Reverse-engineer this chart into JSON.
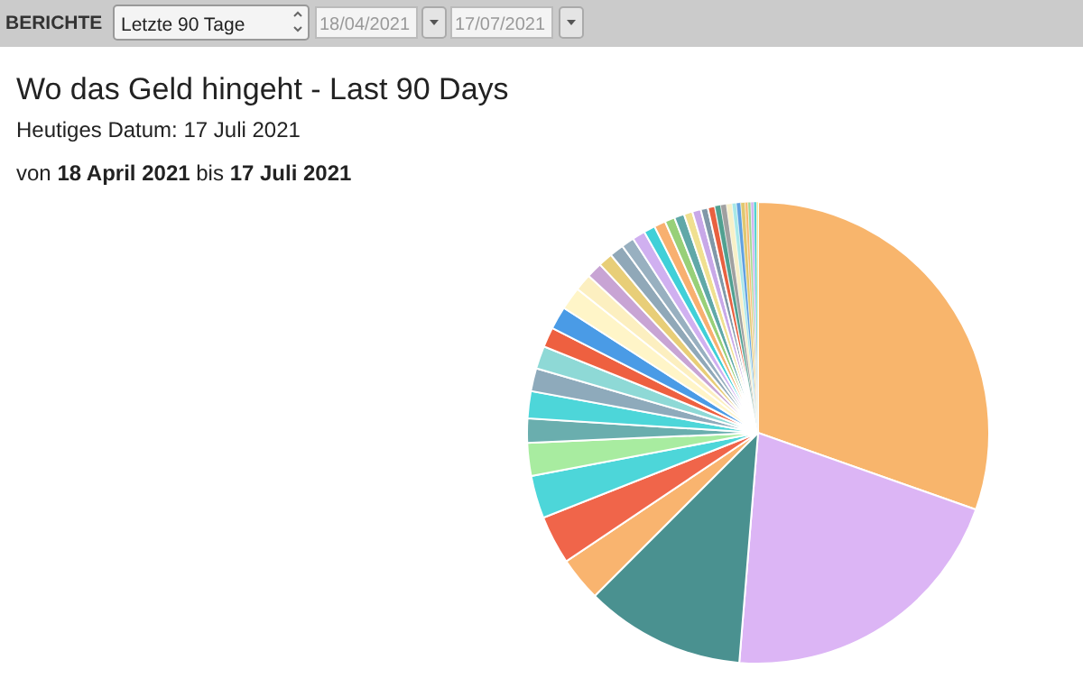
{
  "chart_data": {
    "type": "pie",
    "title": "Wo das Geld hingeht - Last 90 Days",
    "subtitle": "Heutiges Datum: 17 Juli 2021",
    "annotations": [
      "BERICHTE",
      "Letzte 90 Tage",
      "18/04/2021",
      "17/07/2021",
      "von ",
      "18 April 2021",
      " bis ",
      "17 Juli 2021"
    ],
    "categories": [
      null,
      null,
      null,
      null,
      null,
      null,
      null,
      null,
      null,
      null,
      null,
      null,
      null,
      null,
      null,
      null,
      null,
      null,
      null,
      null,
      null,
      null,
      null,
      null,
      null,
      null,
      null,
      null,
      null,
      null,
      null,
      null,
      null,
      null,
      null,
      null,
      null,
      null,
      null
    ],
    "values": [
      30.4,
      20.9,
      11.2,
      3.1,
      3.4,
      3.0,
      2.3,
      1.7,
      1.9,
      1.6,
      1.6,
      1.4,
      1.6,
      1.6,
      1.2,
      1.1,
      1.0,
      1.0,
      0.9,
      0.9,
      0.8,
      0.8,
      0.7,
      0.7,
      0.6,
      0.6,
      0.5,
      0.5,
      0.4,
      0.4,
      0.4,
      0.3,
      0.3,
      0.3,
      0.2,
      0.2,
      0.2,
      0.2,
      0.1
    ],
    "colors": [
      "#f8b56c",
      "#dcb5f5",
      "#4a9190",
      "#f9b46f",
      "#f0654a",
      "#4dd6d9",
      "#a8eca0",
      "#6aaeae",
      "#4dd6d9",
      "#8eaabb",
      "#8ed9d6",
      "#ee6040",
      "#4a9be6",
      "#fff5c8",
      "#fcefc0",
      "#c8a4d4",
      "#e8ce78",
      "#90a8b8",
      "#98b0c0",
      "#d0b0f0",
      "#40d0d8",
      "#f8b070",
      "#98d078",
      "#60a8a8",
      "#f0e090",
      "#c8a8e8",
      "#8098a8",
      "#e86040",
      "#50a090",
      "#a0a0a0",
      "#f8f0c8",
      "#a8e8e8",
      "#60a0e0",
      "#e0c870",
      "#f8b870",
      "#a0d890",
      "#d0b0f0",
      "#50d0d0",
      "#f0e080"
    ]
  }
}
